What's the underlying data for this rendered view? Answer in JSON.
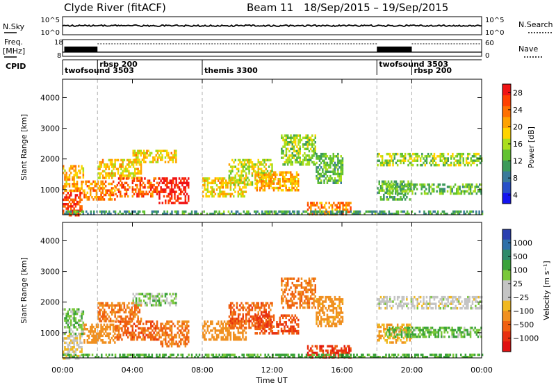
{
  "header": {
    "title": "Clyde River (fitACF)",
    "beam": "Beam 11",
    "date_range": "18/Sep/2015 – 19/Sep/2015"
  },
  "noise_panel": {
    "left_label": "N.Sky",
    "right_label": "N.Search",
    "left_ticks": [
      "10^5",
      "10^0"
    ],
    "right_ticks": [
      "10^5",
      "10^0"
    ]
  },
  "freq_panel": {
    "left_label_1": "Freq.",
    "left_label_2": "[MHz]",
    "right_label": "Nave",
    "left_ticks": [
      "18",
      "8"
    ],
    "right_ticks": [
      "60",
      "0"
    ]
  },
  "cpid": {
    "label": "CPID",
    "segments": [
      {
        "name": "twofsound 3503",
        "start_h": 0.0,
        "end_h": 2.0,
        "row": 1
      },
      {
        "name": "rbsp 200",
        "start_h": 2.0,
        "end_h": 8.0,
        "row": 0
      },
      {
        "name": "themis 3300",
        "start_h": 8.0,
        "end_h": 18.0,
        "row": 1
      },
      {
        "name": "twofsound 3503",
        "start_h": 18.0,
        "end_h": 20.0,
        "row": 0
      },
      {
        "name": "rbsp 200",
        "start_h": 20.0,
        "end_h": 24.0,
        "row": 1
      }
    ]
  },
  "axes": {
    "x_label": "Time UT",
    "x_ticks": [
      "00:00",
      "04:00",
      "08:00",
      "12:00",
      "16:00",
      "20:00",
      "00:00"
    ],
    "x_tick_hours": [
      0,
      4,
      8,
      12,
      16,
      20,
      24
    ],
    "y_label": "Slant Range [km]",
    "y_ticks": [
      1000,
      2000,
      3000,
      4000
    ],
    "y_range_km": [
      180,
      4600
    ]
  },
  "power_colorbar": {
    "label": "Power [dB]",
    "ticks": [
      "4",
      "8",
      "12",
      "16",
      "20",
      "24",
      "28"
    ],
    "colors": [
      "#1414f0",
      "#2850c8",
      "#3a7a9a",
      "#3c9a5a",
      "#62c232",
      "#aade1c",
      "#ffd400",
      "#ffa200",
      "#ff7000",
      "#ff4000",
      "#f01414"
    ]
  },
  "velocity_colorbar": {
    "label": "Velocity [m s⁻¹]",
    "ticks": [
      "1000",
      "500",
      "100",
      "25",
      "−25",
      "−100",
      "−500",
      "−1000"
    ],
    "colors": [
      "#2a3fb0",
      "#2e6fa8",
      "#2f8a6a",
      "#3aa23a",
      "#7ac83a",
      "#c4c4c4",
      "#c4c4c4",
      "#f0b820",
      "#f09020",
      "#f06010",
      "#e83010",
      "#e01010"
    ]
  },
  "chart_data": {
    "type": "heatmap",
    "panels": [
      "power",
      "velocity"
    ],
    "x_range_hours": [
      0,
      24
    ],
    "y_range_km": [
      180,
      4600
    ],
    "regions": [
      {
        "t0": 0.0,
        "t1": 1.1,
        "r0": 200,
        "r1": 1000,
        "power": 26,
        "velocity": -20
      },
      {
        "t0": 0.0,
        "t1": 1.2,
        "r0": 1000,
        "r1": 1800,
        "power": 20,
        "velocity": 40
      },
      {
        "t0": 1.2,
        "t1": 3.0,
        "r0": 700,
        "r1": 1300,
        "power": 22,
        "velocity": -200
      },
      {
        "t0": 2.0,
        "t1": 4.5,
        "r0": 1400,
        "r1": 2000,
        "power": 18,
        "velocity": -300
      },
      {
        "t0": 3.0,
        "t1": 5.5,
        "r0": 800,
        "r1": 1400,
        "power": 24,
        "velocity": -400
      },
      {
        "t0": 4.0,
        "t1": 6.5,
        "r0": 1900,
        "r1": 2300,
        "power": 18,
        "velocity": 30
      },
      {
        "t0": 5.5,
        "t1": 7.2,
        "r0": 600,
        "r1": 1400,
        "power": 28,
        "velocity": -300
      },
      {
        "t0": 8.0,
        "t1": 10.5,
        "r0": 800,
        "r1": 1400,
        "power": 18,
        "velocity": -200
      },
      {
        "t0": 9.5,
        "t1": 12.0,
        "r0": 1200,
        "r1": 2000,
        "power": 16,
        "velocity": -400
      },
      {
        "t0": 11.0,
        "t1": 13.5,
        "r0": 1000,
        "r1": 1600,
        "power": 20,
        "velocity": -500
      },
      {
        "t0": 12.5,
        "t1": 14.5,
        "r0": 1800,
        "r1": 2800,
        "power": 14,
        "velocity": -300
      },
      {
        "t0": 14.0,
        "t1": 16.5,
        "r0": 200,
        "r1": 600,
        "power": 22,
        "velocity": -600
      },
      {
        "t0": 14.5,
        "t1": 16.0,
        "r0": 1200,
        "r1": 2200,
        "power": 12,
        "velocity": -150
      },
      {
        "t0": 18.0,
        "t1": 20.0,
        "r0": 700,
        "r1": 1300,
        "power": 12,
        "velocity": -100
      },
      {
        "t0": 18.0,
        "t1": 24.0,
        "r0": 1800,
        "r1": 2200,
        "power": 14,
        "velocity": 0
      },
      {
        "t0": 18.5,
        "t1": 24.0,
        "r0": 850,
        "r1": 1200,
        "power": 12,
        "velocity": 50
      },
      {
        "t0": 0.0,
        "t1": 24.0,
        "r0": 180,
        "r1": 320,
        "power": 10,
        "velocity": 60
      }
    ]
  }
}
